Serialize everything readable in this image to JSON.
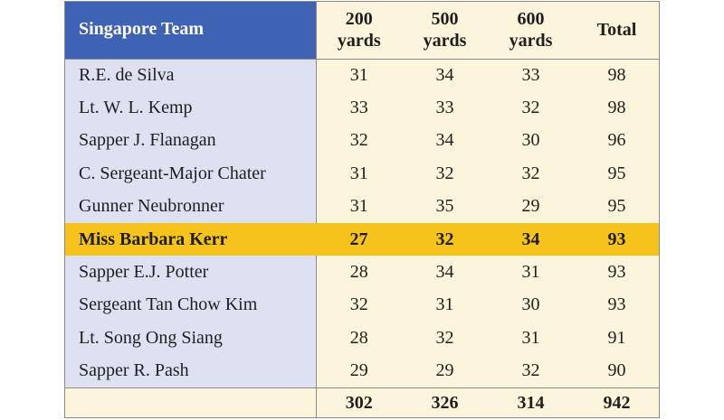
{
  "table": {
    "headers": {
      "team": "Singapore Team",
      "col1_line1": "200",
      "col1_line2": "yards",
      "col2_line1": "500",
      "col2_line2": "yards",
      "col3_line1": "600",
      "col3_line2": "yards",
      "total": "Total"
    },
    "rows": [
      {
        "name": "R.E. de Silva",
        "y200": "31",
        "y500": "34",
        "y600": "33",
        "total": "98"
      },
      {
        "name": "Lt. W. L. Kemp",
        "y200": "33",
        "y500": "33",
        "y600": "32",
        "total": "98"
      },
      {
        "name": "Sapper J. Flanagan",
        "y200": "32",
        "y500": "34",
        "y600": "30",
        "total": "96"
      },
      {
        "name": "C. Sergeant-Major Chater",
        "y200": "31",
        "y500": "32",
        "y600": "32",
        "total": "95"
      },
      {
        "name": "Gunner Neubronner",
        "y200": "31",
        "y500": "35",
        "y600": "29",
        "total": "95"
      },
      {
        "name": "Miss Barbara Kerr",
        "y200": "27",
        "y500": "32",
        "y600": "34",
        "total": "93"
      },
      {
        "name": "Sapper E.J. Potter",
        "y200": "28",
        "y500": "34",
        "y600": "31",
        "total": "93"
      },
      {
        "name": "Sergeant Tan Chow Kim",
        "y200": "32",
        "y500": "31",
        "y600": "30",
        "total": "93"
      },
      {
        "name": "Lt. Song Ong Siang",
        "y200": "28",
        "y500": "32",
        "y600": "31",
        "total": "91"
      },
      {
        "name": "Sapper R. Pash",
        "y200": "29",
        "y500": "29",
        "y600": "32",
        "total": "90"
      }
    ],
    "totals": {
      "y200": "302",
      "y500": "326",
      "y600": "314",
      "total": "942"
    },
    "highlight_row": 5
  },
  "colors": {
    "header_blue": "#3f63b4",
    "name_column": "#dde1f2",
    "cell_cream": "#fdf4dc",
    "highlight_gold": "#f6c31c",
    "border": "#8a8a8a"
  }
}
